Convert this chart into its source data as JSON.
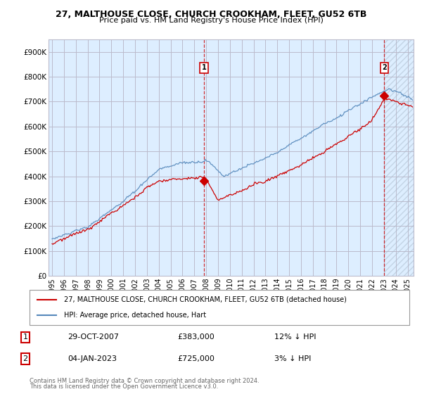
{
  "title_line1": "27, MALTHOUSE CLOSE, CHURCH CROOKHAM, FLEET, GU52 6TB",
  "title_line2": "Price paid vs. HM Land Registry's House Price Index (HPI)",
  "legend_label_red": "27, MALTHOUSE CLOSE, CHURCH CROOKHAM, FLEET, GU52 6TB (detached house)",
  "legend_label_blue": "HPI: Average price, detached house, Hart",
  "annotation1_label": "1",
  "annotation1_date": "29-OCT-2007",
  "annotation1_price": "£383,000",
  "annotation1_hpi": "12% ↓ HPI",
  "annotation2_label": "2",
  "annotation2_date": "04-JAN-2023",
  "annotation2_price": "£725,000",
  "annotation2_hpi": "3% ↓ HPI",
  "footer_line1": "Contains HM Land Registry data © Crown copyright and database right 2024.",
  "footer_line2": "This data is licensed under the Open Government Licence v3.0.",
  "red_color": "#cc0000",
  "blue_color": "#5588bb",
  "bg_chart_color": "#ddeeff",
  "background_color": "#ffffff",
  "grid_color": "#bbbbcc",
  "ylim": [
    0,
    950000
  ],
  "yticks": [
    0,
    100000,
    200000,
    300000,
    400000,
    500000,
    600000,
    700000,
    800000,
    900000
  ],
  "ytick_labels": [
    "£0",
    "£100K",
    "£200K",
    "£300K",
    "£400K",
    "£500K",
    "£600K",
    "£700K",
    "£800K",
    "£900K"
  ],
  "sale1_x": 2007.83,
  "sale1_y": 383000,
  "sale2_x": 2023.03,
  "sale2_y": 725000,
  "xmin": 1995,
  "xmax": 2025.5
}
